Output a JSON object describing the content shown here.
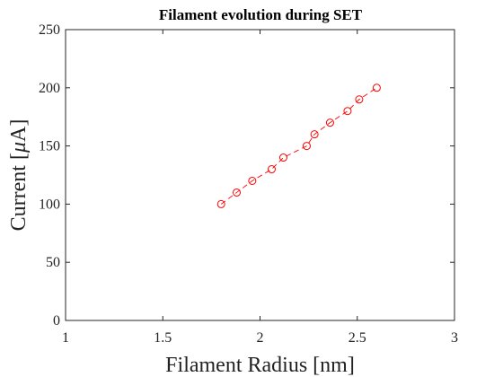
{
  "chart_data": {
    "type": "line",
    "title": "Filament evolution during SET",
    "xlabel": "Filament Radius [nm]",
    "ylabel_prefix": "Current [",
    "ylabel_mu": "μ",
    "ylabel_suffix": "A]",
    "xlim": [
      1,
      3
    ],
    "ylim": [
      0,
      250
    ],
    "xticks": [
      1,
      1.5,
      2,
      2.5,
      3
    ],
    "xtick_labels": [
      "1",
      "1.5",
      "2",
      "2.5",
      "3"
    ],
    "yticks": [
      0,
      50,
      100,
      150,
      200,
      250
    ],
    "ytick_labels": [
      "0",
      "50",
      "100",
      "150",
      "200",
      "250"
    ],
    "grid": false,
    "series": [
      {
        "color": "#ff0000",
        "line_style": "dashed",
        "marker": "circle",
        "x": [
          1.8,
          1.88,
          1.96,
          2.06,
          2.12,
          2.24,
          2.28,
          2.36,
          2.45,
          2.51,
          2.6
        ],
        "y": [
          100,
          110,
          120,
          130,
          140,
          150,
          160,
          170,
          180,
          190,
          200
        ]
      }
    ]
  }
}
